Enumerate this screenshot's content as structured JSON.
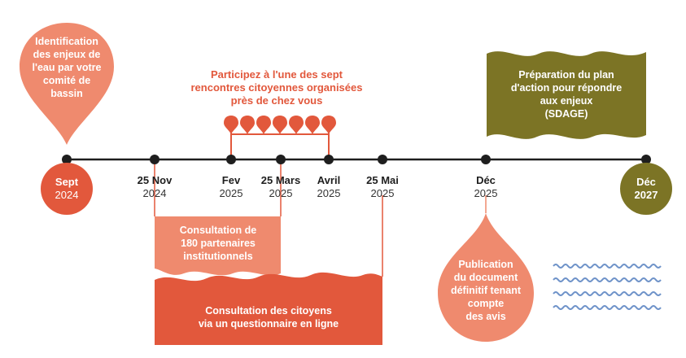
{
  "colors": {
    "red_orange": "#e2583c",
    "salmon": "#ef8a6e",
    "olive": "#7c7425",
    "wave_blue": "#6f93c9",
    "axis": "#1e1e1e"
  },
  "start_bubble": {
    "lines": [
      "Identification",
      "des enjeux de",
      "l'eau par votre",
      "comité de",
      "bassin"
    ]
  },
  "start_date": {
    "label": "Sept",
    "year": "2024"
  },
  "end_date": {
    "label": "Déc",
    "year": "2027"
  },
  "dates": [
    {
      "label": "25 Nov",
      "year": "2024"
    },
    {
      "label": "Fev",
      "year": "2025"
    },
    {
      "label": "25 Mars",
      "year": "2025"
    },
    {
      "label": "Avril",
      "year": "2025"
    },
    {
      "label": "25 Mai",
      "year": "2025"
    },
    {
      "label": "Déc",
      "year": "2025"
    }
  ],
  "meetings": {
    "lines": [
      "Participez à l'une des sept",
      "rencontres citoyennes organisées",
      "près de chez vous"
    ],
    "pin_count": 7
  },
  "sdage": {
    "lines": [
      "Préparation du plan",
      "d'action pour répondre",
      "aux enjeux",
      "(SDAGE)"
    ]
  },
  "partners": {
    "lines": [
      "Consultation de",
      "180 partenaires",
      "institutionnels"
    ]
  },
  "citizens": {
    "lines": [
      "Consultation des citoyens",
      "via un questionnaire en ligne"
    ]
  },
  "publication": {
    "lines": [
      "Publication",
      "du document",
      "définitif tenant",
      "compte",
      "des avis"
    ]
  }
}
